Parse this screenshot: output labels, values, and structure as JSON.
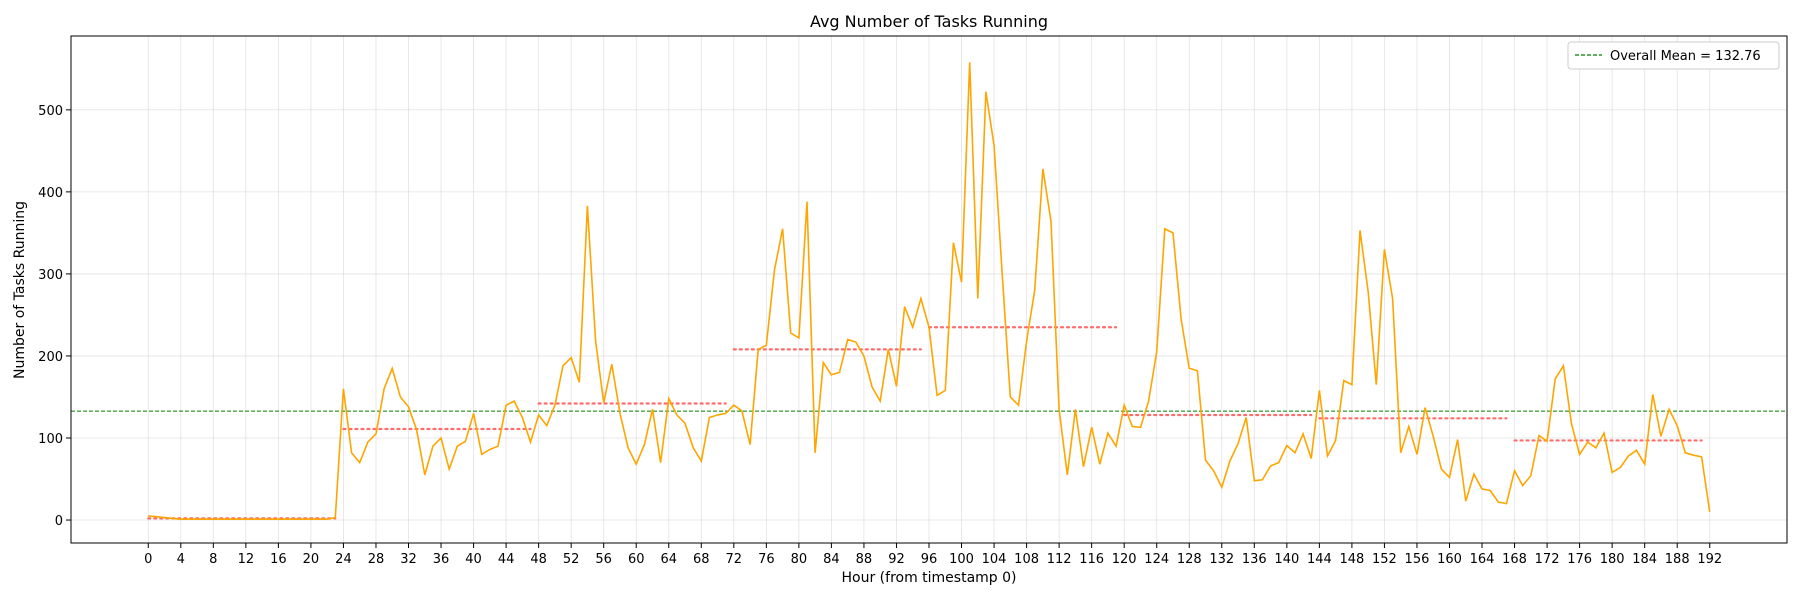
{
  "chart_data": {
    "type": "line",
    "title": "Avg Number of Tasks Running",
    "xlabel": "Hour (from timestamp 0)",
    "ylabel": "Number of Tasks Running",
    "xlim": [
      -9.5,
      201.5
    ],
    "ylim": [
      -28,
      590
    ],
    "xticks": [
      0,
      4,
      8,
      12,
      16,
      20,
      24,
      28,
      32,
      36,
      40,
      44,
      48,
      52,
      56,
      60,
      64,
      68,
      72,
      76,
      80,
      84,
      88,
      92,
      96,
      100,
      104,
      108,
      112,
      116,
      120,
      124,
      128,
      132,
      136,
      140,
      144,
      148,
      152,
      156,
      160,
      164,
      168,
      172,
      176,
      180,
      184,
      188,
      192
    ],
    "yticks": [
      0,
      100,
      200,
      300,
      400,
      500
    ],
    "grid": true,
    "legend": {
      "position": "top-right",
      "entries": [
        "Overall Mean = 132.76"
      ]
    },
    "series": [
      {
        "color": "#ffa500",
        "values": [
          5,
          4,
          3,
          2,
          1,
          1,
          1,
          1,
          1,
          1,
          1,
          1,
          1,
          1,
          1,
          1,
          1,
          1,
          1,
          1,
          1,
          1,
          1,
          3,
          160,
          82,
          70,
          95,
          105,
          160,
          185,
          150,
          138,
          110,
          55,
          90,
          100,
          62,
          90,
          96,
          130,
          80,
          86,
          90,
          140,
          145,
          125,
          95,
          128,
          115,
          140,
          188,
          198,
          168,
          383,
          218,
          143,
          190,
          130,
          88,
          68,
          92,
          135,
          70,
          148,
          128,
          118,
          88,
          72,
          125,
          128,
          130,
          140,
          133,
          92,
          208,
          213,
          305,
          355,
          228,
          222,
          388,
          82,
          192,
          177,
          180,
          220,
          217,
          200,
          162,
          145,
          208,
          163,
          260,
          235,
          270,
          235,
          152,
          158,
          338,
          290,
          558,
          270,
          522,
          456,
          300,
          150,
          140,
          218,
          280,
          428,
          364,
          135,
          55,
          135,
          65,
          113,
          68,
          106,
          90,
          140,
          114,
          113,
          145,
          205,
          355,
          350,
          245,
          185,
          182,
          73,
          60,
          40,
          72,
          93,
          125,
          48,
          49,
          66,
          70,
          91,
          82,
          105,
          75,
          158,
          78,
          97,
          170,
          165,
          353,
          278,
          165,
          330,
          270,
          82,
          114,
          80,
          137,
          102,
          62,
          52,
          98,
          23,
          56,
          38,
          36,
          22,
          20,
          60,
          42,
          54,
          103,
          96,
          172,
          188,
          117,
          80,
          95,
          88,
          106,
          58,
          64,
          78,
          85,
          68,
          153,
          102,
          135,
          115,
          82,
          79,
          77,
          10
        ]
      }
    ],
    "mean_line": {
      "label": "Overall Mean = 132.76",
      "value": 132.76,
      "color": "#008000"
    },
    "daily_means": {
      "color": "#ff6b6b",
      "segments": [
        {
          "x": [
            0,
            23
          ],
          "value": 2
        },
        {
          "x": [
            24,
            47
          ],
          "value": 111
        },
        {
          "x": [
            48,
            71
          ],
          "value": 142
        },
        {
          "x": [
            72,
            95
          ],
          "value": 208
        },
        {
          "x": [
            96,
            119
          ],
          "value": 235
        },
        {
          "x": [
            120,
            143
          ],
          "value": 128
        },
        {
          "x": [
            144,
            167
          ],
          "value": 124
        },
        {
          "x": [
            168,
            191
          ],
          "value": 97
        }
      ]
    }
  }
}
